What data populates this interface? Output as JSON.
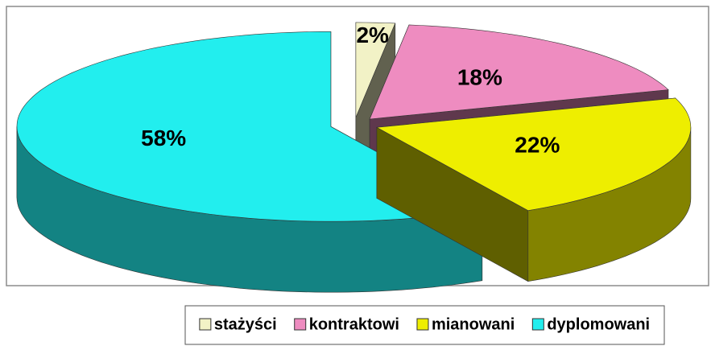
{
  "chart_data": {
    "type": "pie3d",
    "categories": [
      "stażyści",
      "kontraktowi",
      "mianowani",
      "dyplomowani"
    ],
    "values": [
      2,
      18,
      22,
      58
    ],
    "value_labels": [
      "2%",
      "18%",
      "22%",
      "58%"
    ],
    "colors": [
      "#f2f2c6",
      "#ee8cc0",
      "#eeee00",
      "#22eeee"
    ],
    "exploded": true,
    "legend": "bottom"
  }
}
